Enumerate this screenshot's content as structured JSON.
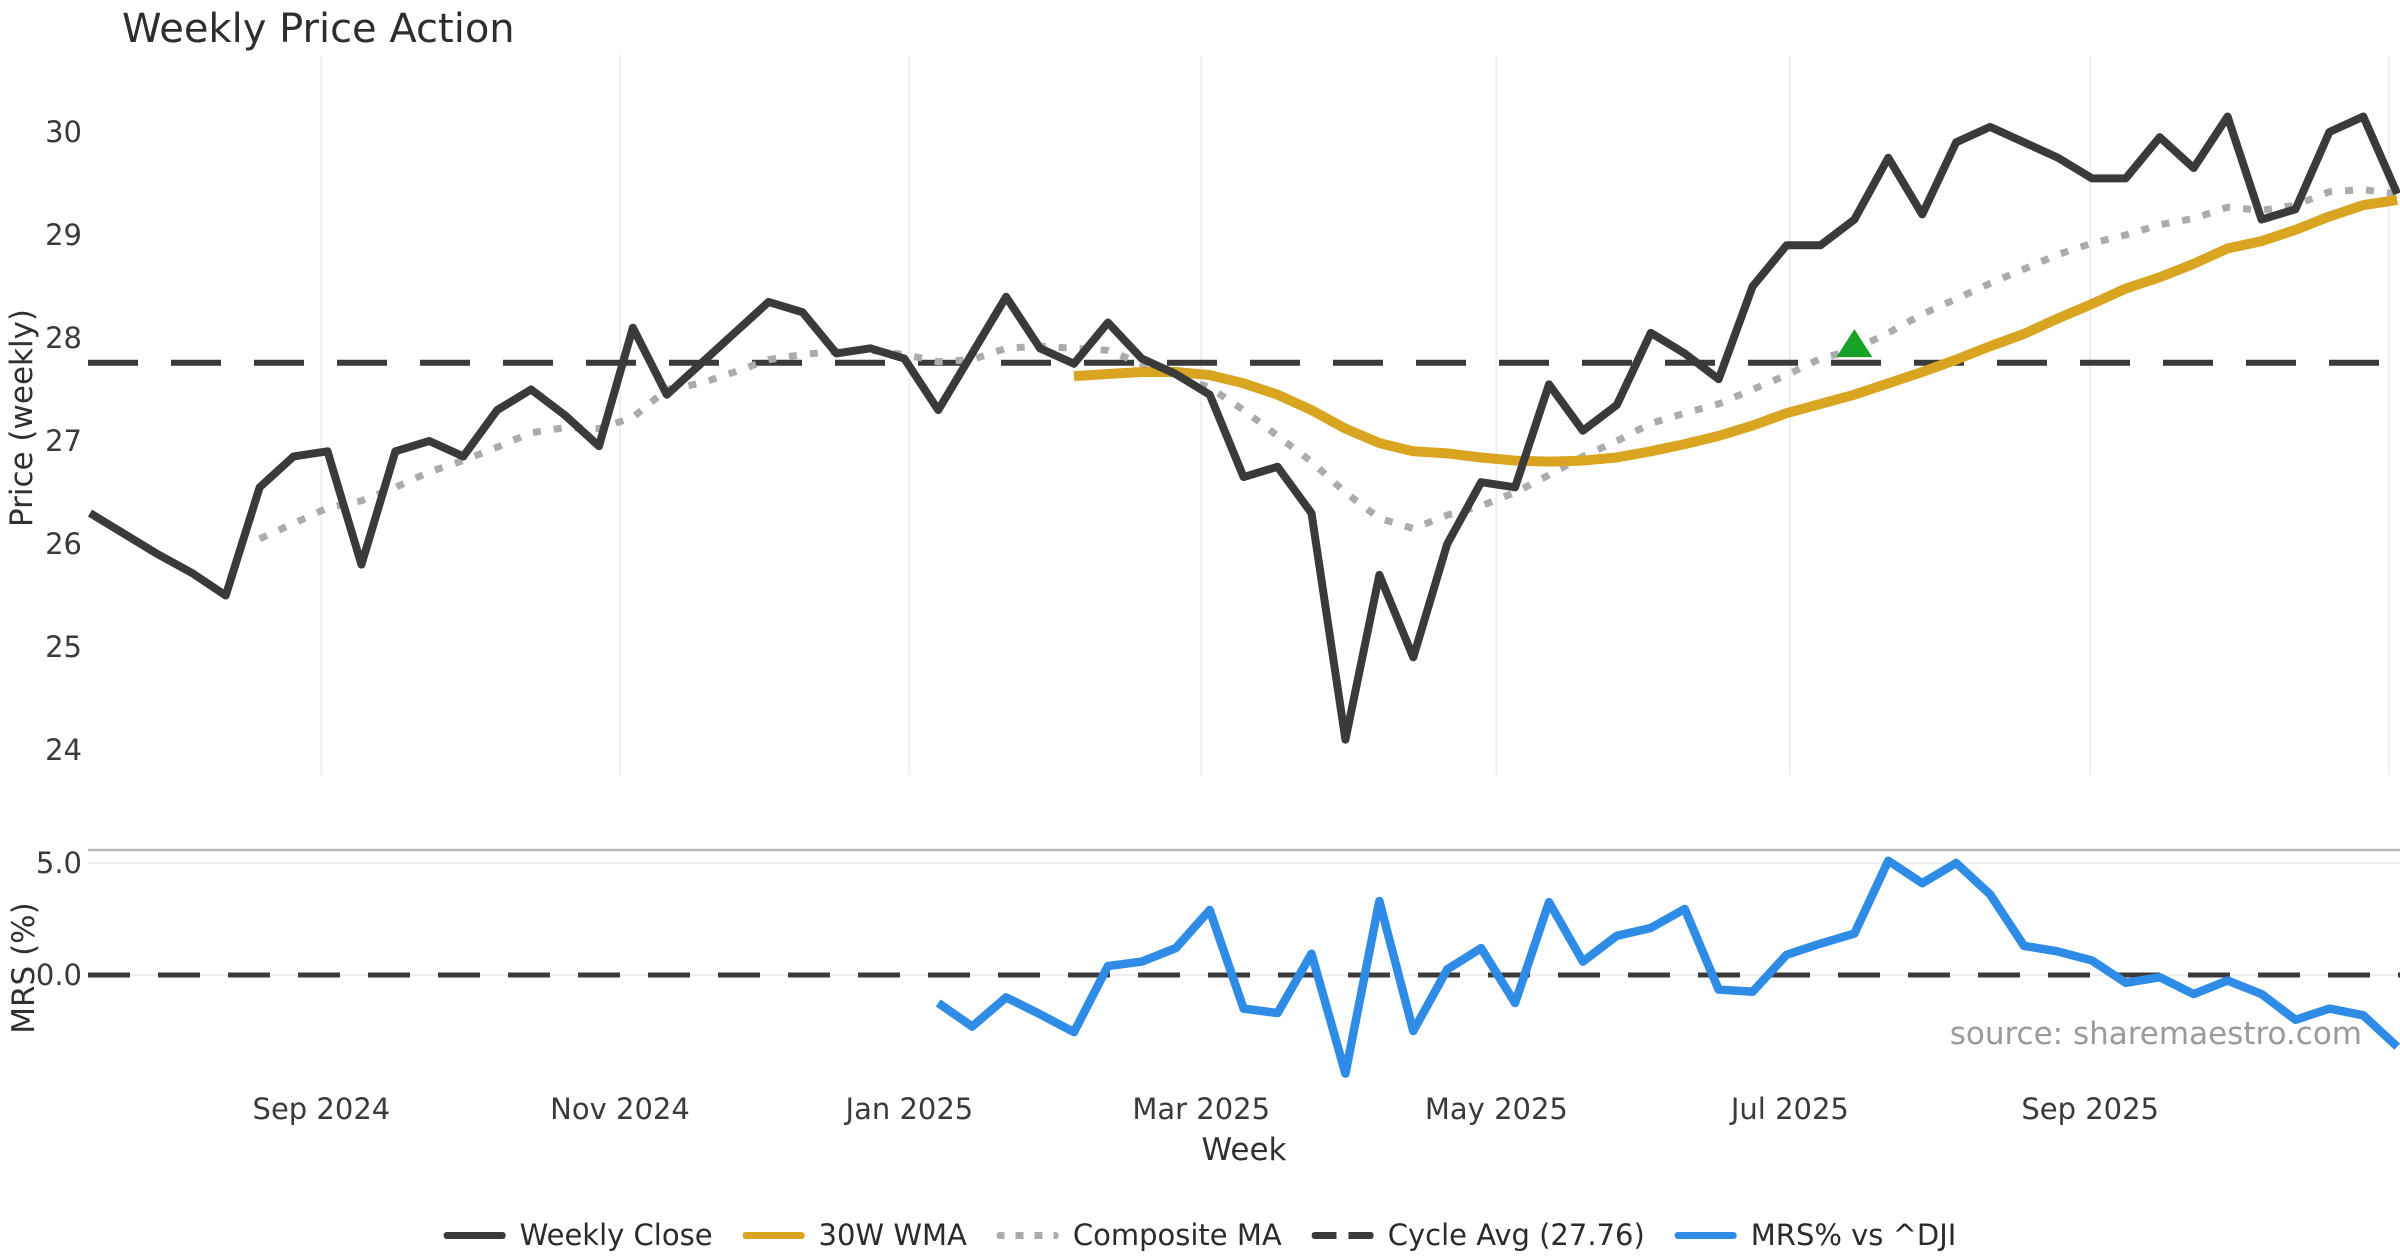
{
  "chart": {
    "title": "Weekly Price Action",
    "price_axis_label": "Price (weekly)",
    "mrs_axis_label": "MRS (%)",
    "week_axis_label": "Week",
    "source_text": "source: sharemaestro.com"
  },
  "legend": [
    {
      "key": "weekly-close",
      "label": "Weekly Close",
      "style": "solid",
      "color": "#3a3a3a"
    },
    {
      "key": "wma-30w",
      "label": "30W WMA",
      "style": "solid",
      "color": "#d9a521"
    },
    {
      "key": "composite-ma",
      "label": "Composite MA",
      "style": "dotted",
      "color": "#ababab"
    },
    {
      "key": "cycle-avg",
      "label": "Cycle Avg (27.76)",
      "style": "dashed",
      "color": "#3a3a3a"
    },
    {
      "key": "mrs-vs-dji",
      "label": "MRS% vs ^DJI",
      "style": "solid",
      "color": "#2e8ce6"
    }
  ],
  "chart_data": {
    "type": "line",
    "title": "Weekly Price Action",
    "xlabel": "Week",
    "x_unit": "week index (week 0 = mid-Jul 2024, one point per week)",
    "grid": "vertical-only",
    "legend_position": "bottom-center",
    "x_ticks": [
      {
        "label": "Sep 2024",
        "week": 6.82
      },
      {
        "label": "Nov 2024",
        "week": 15.62
      },
      {
        "label": "Jan 2025",
        "week": 24.15
      },
      {
        "label": "Mar 2025",
        "week": 32.75
      },
      {
        "label": "May 2025",
        "week": 41.45
      },
      {
        "label": "Jul 2025",
        "week": 50.1
      },
      {
        "label": "Sep 2025",
        "week": 58.95
      },
      {
        "label": "",
        "week": 67.75
      }
    ],
    "top_panel": {
      "ylabel": "Price (weekly)",
      "ylim": [
        23.75,
        30.75
      ],
      "yticks": [
        24,
        25,
        26,
        27,
        28,
        29,
        30
      ],
      "cycle_avg": 27.76,
      "series": {
        "weekly_close": {
          "name": "Weekly Close",
          "color": "#3a3a3a",
          "start_week": 0,
          "values": [
            26.3,
            26.1,
            25.9,
            25.72,
            25.5,
            26.55,
            26.85,
            26.9,
            25.8,
            26.9,
            27.0,
            26.85,
            27.3,
            27.5,
            27.25,
            26.95,
            28.1,
            27.45,
            27.75,
            28.05,
            28.35,
            28.25,
            27.85,
            27.9,
            27.8,
            27.3,
            27.85,
            28.4,
            27.9,
            27.75,
            28.15,
            27.8,
            27.65,
            27.45,
            26.65,
            26.75,
            26.3,
            24.1,
            25.7,
            24.9,
            26.0,
            26.6,
            26.55,
            27.55,
            27.1,
            27.35,
            28.05,
            27.85,
            27.6,
            28.5,
            28.9,
            28.9,
            29.15,
            29.75,
            29.2,
            29.9,
            30.05,
            29.9,
            29.75,
            29.55,
            29.55,
            29.95,
            29.65,
            30.15,
            29.15,
            29.25,
            30.0,
            30.15,
            29.4
          ]
        },
        "wma_30w": {
          "name": "30W WMA",
          "color": "#d9a521",
          "start_week": 29,
          "values": [
            27.63,
            27.65,
            27.67,
            27.67,
            27.64,
            27.56,
            27.45,
            27.3,
            27.12,
            26.98,
            26.9,
            26.88,
            26.84,
            26.81,
            26.8,
            26.81,
            26.84,
            26.9,
            26.97,
            27.05,
            27.15,
            27.27,
            27.36,
            27.45,
            27.56,
            27.67,
            27.79,
            27.92,
            28.04,
            28.19,
            28.33,
            28.48,
            28.59,
            28.72,
            28.87,
            28.94,
            29.05,
            29.18,
            29.29,
            29.34
          ]
        },
        "composite_ma": {
          "name": "Composite MA",
          "color": "#ababab",
          "start_week": 5,
          "values": [
            26.05,
            26.2,
            26.35,
            26.42,
            26.55,
            26.7,
            26.81,
            26.94,
            27.08,
            27.13,
            27.12,
            27.23,
            27.5,
            27.56,
            27.67,
            27.79,
            27.84,
            27.87,
            27.88,
            27.84,
            27.77,
            27.79,
            27.9,
            27.92,
            27.9,
            27.88,
            27.75,
            27.63,
            27.52,
            27.3,
            27.05,
            26.8,
            26.5,
            26.25,
            26.15,
            26.28,
            26.37,
            26.5,
            26.67,
            26.85,
            27.0,
            27.17,
            27.27,
            27.36,
            27.5,
            27.64,
            27.8,
            27.89,
            28.05,
            28.23,
            28.38,
            28.53,
            28.67,
            28.81,
            28.92,
            29.0,
            29.1,
            29.16,
            29.27,
            29.24,
            29.29,
            29.42,
            29.44,
            29.4
          ]
        }
      },
      "signal_marker": {
        "week": 52,
        "price": 27.95,
        "symbol": "triangle-up",
        "color": "#16a127"
      }
    },
    "bottom_panel": {
      "ylabel": "MRS (%)",
      "ylim": [
        -4.7,
        5.6
      ],
      "yticks": [
        0.0,
        5.0
      ],
      "ytick_labels": [
        "0.0",
        "5.0"
      ],
      "zero_dashed_line": true,
      "series": {
        "mrs_vs_dji": {
          "name": "MRS% vs ^DJI",
          "color": "#2e8ce6",
          "start_week": 25,
          "values": [
            -1.25,
            -2.3,
            -1.0,
            -1.75,
            -2.55,
            0.4,
            0.6,
            1.2,
            2.9,
            -1.5,
            -1.7,
            0.95,
            -4.4,
            3.3,
            -2.5,
            0.25,
            1.2,
            -1.25,
            3.25,
            0.6,
            1.75,
            2.1,
            2.95,
            -0.65,
            -0.75,
            0.9,
            1.4,
            1.85,
            5.1,
            4.1,
            5.0,
            3.6,
            1.3,
            1.05,
            0.65,
            -0.35,
            -0.1,
            -0.85,
            -0.25,
            -0.85,
            -2.0,
            -1.5,
            -1.8,
            -3.2
          ]
        }
      }
    }
  }
}
